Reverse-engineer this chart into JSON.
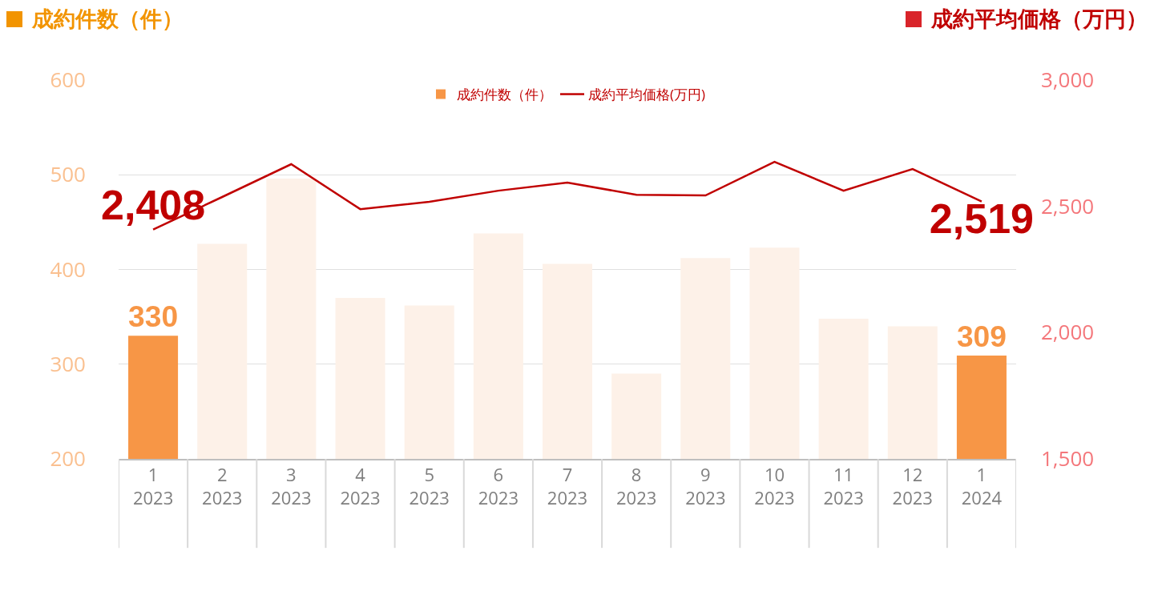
{
  "chart_data": {
    "type": "bar",
    "categories": [
      "1\n2023",
      "2\n2023",
      "3\n2023",
      "4\n2023",
      "5\n2023",
      "6\n2023",
      "7\n2023",
      "8\n2023",
      "9\n2023",
      "10\n2023",
      "11\n2023",
      "12\n2023",
      "1\n2024"
    ],
    "ylabel": "成約件数（件）",
    "y2label": "成約平均価格（万円）",
    "series": [
      {
        "name": "成約件数（件）",
        "color": "#f79646",
        "colors": [
          "#f79646",
          "#fdf1e8",
          "#fdf1e8",
          "#fdf1e8",
          "#fdf1e8",
          "#fdf1e8",
          "#fdf1e8",
          "#fdf1e8",
          "#fdf1e8",
          "#fdf1e8",
          "#fdf1e8",
          "#fdf1e8",
          "#f79646"
        ],
        "values": [
          330,
          427,
          496,
          370,
          362,
          438,
          406,
          290,
          412,
          423,
          348,
          340,
          309
        ],
        "value_labels": [
          "330",
          null,
          null,
          null,
          null,
          null,
          null,
          null,
          null,
          null,
          null,
          null,
          "309"
        ]
      },
      {
        "name": "成約平均価格(万円)",
        "type": "line",
        "axis": "y2",
        "color": "#c00000",
        "values": [
          2408,
          2537,
          2667,
          2489,
          2518,
          2562,
          2594,
          2546,
          2543,
          2676,
          2562,
          2648,
          2519
        ],
        "value_labels": [
          "2,408",
          null,
          null,
          null,
          null,
          null,
          null,
          null,
          null,
          null,
          null,
          null,
          "2,519"
        ]
      }
    ],
    "ylim": [
      200,
      600
    ],
    "yticks": [
      200,
      300,
      400,
      500,
      600
    ],
    "y2lim": [
      1500,
      3000
    ],
    "y2ticks": [
      {
        "value": 1500,
        "label": "1,500"
      },
      {
        "value": 2000,
        "label": "2,000"
      },
      {
        "value": 2500,
        "label": "2,500"
      },
      {
        "value": 3000,
        "label": "3,000"
      }
    ],
    "grid": "y",
    "legend": "top",
    "marker": "none",
    "line_style": "solid"
  }
}
